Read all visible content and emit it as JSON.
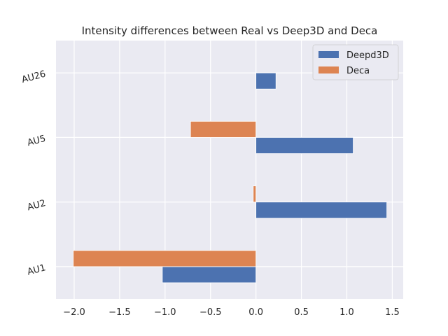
{
  "chart_data": {
    "type": "bar",
    "orientation": "horizontal",
    "title": "Intensity differences between Real vs Deep3D and Deca",
    "xlabel": "",
    "ylabel": "",
    "categories": [
      "AU1",
      "AU2",
      "AU5",
      "AU26"
    ],
    "series": [
      {
        "name": "Deepd3D",
        "color": "#4c72b0",
        "values": [
          -1.03,
          1.44,
          1.07,
          0.22
        ]
      },
      {
        "name": "Deca",
        "color": "#dd8452",
        "values": [
          -2.01,
          -0.03,
          -0.72,
          0.0
        ]
      }
    ],
    "xlim": [
      -2.2,
      1.62
    ],
    "xticks": [
      -2.0,
      -1.5,
      -1.0,
      -0.5,
      0.0,
      0.5,
      1.0,
      1.5
    ],
    "xtick_labels": [
      "−2.0",
      "−1.5",
      "−1.0",
      "−0.5",
      "0.0",
      "0.5",
      "1.0",
      "1.5"
    ],
    "grid": true,
    "legend_position": "top-right",
    "background_color": "#eaeaf2"
  }
}
